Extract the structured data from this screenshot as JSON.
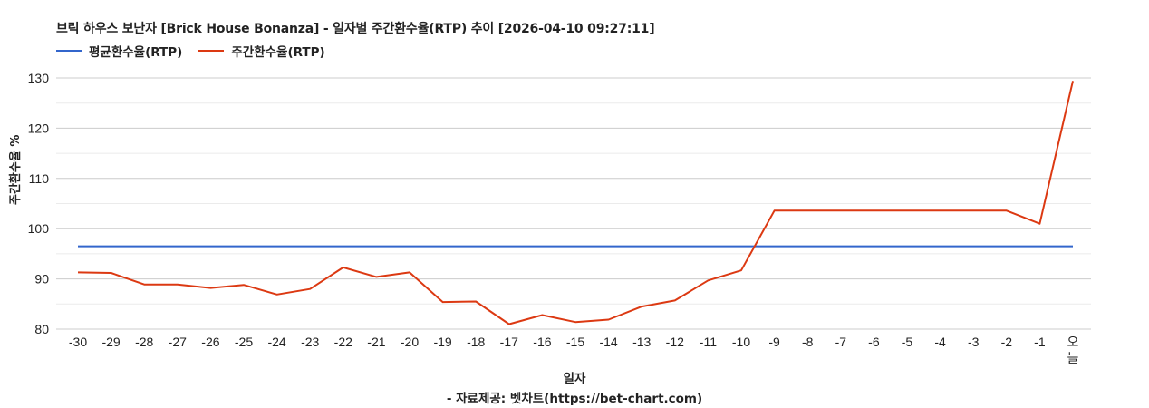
{
  "title": "브릭 하우스 보난자 [Brick House Bonanza] - 일자별 주간환수율(RTP) 추이 [2026-04-10 09:27:11]",
  "legend": [
    {
      "label": "평균환수율(RTP)",
      "color": "#3366cc"
    },
    {
      "label": "주간환수율(RTP)",
      "color": "#dc3912"
    }
  ],
  "axis": {
    "ylabel": "주간환수율 %",
    "xlabel": "일자",
    "source": "- 자료제공: 벳차트(https://bet-chart.com)"
  },
  "chart_data": {
    "type": "line",
    "title": "브릭 하우스 보난자 [Brick House Bonanza] - 일자별 주간환수율(RTP) 추이 [2026-04-10 09:27:11]",
    "xlabel": "일자",
    "ylabel": "주간환수율 %",
    "ylim": [
      80,
      130
    ],
    "yticks": [
      80,
      90,
      100,
      110,
      120,
      130
    ],
    "grid": true,
    "legend_position": "top-left",
    "categories": [
      "-30",
      "-29",
      "-28",
      "-27",
      "-26",
      "-25",
      "-24",
      "-23",
      "-22",
      "-21",
      "-20",
      "-19",
      "-18",
      "-17",
      "-16",
      "-15",
      "-14",
      "-13",
      "-12",
      "-11",
      "-10",
      "-9",
      "-8",
      "-7",
      "-6",
      "-5",
      "-4",
      "-3",
      "-2",
      "-1",
      "오늘"
    ],
    "series": [
      {
        "name": "평균환수율(RTP)",
        "color": "#3366cc",
        "values": [
          96.5,
          96.5,
          96.5,
          96.5,
          96.5,
          96.5,
          96.5,
          96.5,
          96.5,
          96.5,
          96.5,
          96.5,
          96.5,
          96.5,
          96.5,
          96.5,
          96.5,
          96.5,
          96.5,
          96.5,
          96.5,
          96.5,
          96.5,
          96.5,
          96.5,
          96.5,
          96.5,
          96.5,
          96.5,
          96.5,
          96.5
        ]
      },
      {
        "name": "주간환수율(RTP)",
        "color": "#dc3912",
        "values": [
          91.3,
          91.2,
          88.9,
          88.9,
          88.2,
          88.8,
          86.9,
          88.0,
          92.3,
          90.4,
          91.3,
          85.4,
          85.5,
          81.0,
          82.8,
          81.4,
          81.9,
          84.5,
          85.7,
          89.7,
          91.7,
          103.6,
          103.6,
          103.6,
          103.6,
          103.6,
          103.6,
          103.6,
          103.6,
          101.0,
          129.4
        ]
      }
    ]
  }
}
